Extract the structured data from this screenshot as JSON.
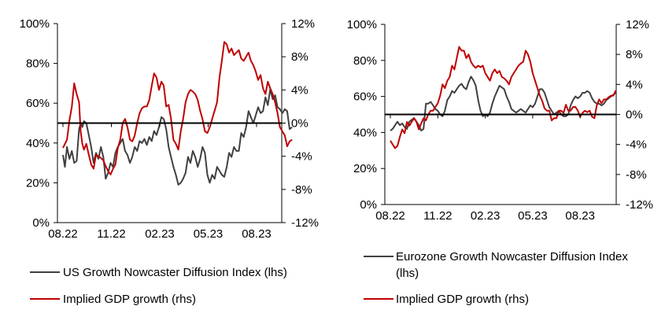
{
  "chart_data": [
    {
      "type": "line",
      "id": "us",
      "x_tick_labels": [
        "08.22",
        "11.22",
        "02.23",
        "05.23",
        "08.23"
      ],
      "x_tick_positions_month_index": [
        0,
        3,
        6,
        9,
        12
      ],
      "x_range_month_index": [
        0,
        14.3
      ],
      "ylim_left": [
        0,
        100
      ],
      "ylim_right": [
        -12,
        12
      ],
      "left_tick_labels": [
        "0%",
        "20%",
        "40%",
        "60%",
        "80%",
        "100%"
      ],
      "right_tick_labels": [
        "-12%",
        "-8%",
        "-4%",
        "0%",
        "4%",
        "8%",
        "12%"
      ],
      "reference_line": {
        "axis": "left",
        "value": 50
      },
      "series": [
        {
          "name": "US Growth Nowcaster Diffusion Index (lhs)",
          "axis": "left",
          "color": "#404040",
          "x": [
            0,
            0.12,
            0.25,
            0.4,
            0.55,
            0.7,
            0.85,
            1,
            1.1,
            1.2,
            1.3,
            1.45,
            1.6,
            1.75,
            1.9,
            2.05,
            2.2,
            2.35,
            2.5,
            2.65,
            2.8,
            2.95,
            3.1,
            3.25,
            3.4,
            3.55,
            3.7,
            3.85,
            4,
            4.15,
            4.3,
            4.45,
            4.6,
            4.75,
            4.9,
            5.05,
            5.2,
            5.35,
            5.5,
            5.65,
            5.8,
            5.95,
            6.1,
            6.25,
            6.4,
            6.55,
            6.7,
            6.85,
            7,
            7.15,
            7.3,
            7.45,
            7.6,
            7.75,
            7.9,
            8.05,
            8.2,
            8.35,
            8.5,
            8.65,
            8.8,
            8.95,
            9.1,
            9.25,
            9.4,
            9.55,
            9.7,
            9.85,
            10,
            10.15,
            10.3,
            10.45,
            10.6,
            10.75,
            10.9,
            11.05,
            11.2,
            11.35,
            11.5,
            11.65,
            11.8,
            11.95,
            12.1,
            12.25,
            12.4,
            12.55,
            12.7,
            12.85,
            13,
            13.15,
            13.3,
            13.45,
            13.6,
            13.75,
            13.9,
            14.05,
            14.2
          ],
          "values": [
            34,
            28,
            38,
            32,
            36,
            30,
            31,
            47,
            50,
            48,
            51,
            50,
            44,
            38,
            30,
            35,
            32,
            38,
            33,
            22,
            25,
            30,
            28,
            35,
            38,
            40,
            42,
            36,
            34,
            30,
            33,
            38,
            36,
            41,
            40,
            42,
            39,
            43,
            41,
            46,
            44,
            48,
            53,
            52,
            47,
            38,
            33,
            28,
            24,
            19,
            20,
            22,
            25,
            33,
            30,
            36,
            33,
            28,
            32,
            38,
            35,
            24,
            20,
            24,
            22,
            28,
            26,
            24,
            23,
            28,
            35,
            33,
            38,
            36,
            36,
            45,
            43,
            48,
            56,
            53,
            50,
            54,
            58,
            55,
            56,
            63,
            59,
            67,
            62,
            64,
            58,
            57,
            55,
            57,
            56,
            47,
            48
          ]
        },
        {
          "name": "Implied GDP growth (rhs)",
          "axis": "right",
          "color": "#c00000",
          "x": [
            0,
            0.12,
            0.25,
            0.4,
            0.55,
            0.7,
            0.85,
            1,
            1.1,
            1.2,
            1.3,
            1.45,
            1.6,
            1.75,
            1.9,
            2.05,
            2.2,
            2.35,
            2.5,
            2.65,
            2.8,
            2.95,
            3.1,
            3.25,
            3.4,
            3.55,
            3.7,
            3.85,
            4,
            4.15,
            4.3,
            4.45,
            4.6,
            4.75,
            4.9,
            5.05,
            5.2,
            5.35,
            5.5,
            5.65,
            5.8,
            5.95,
            6.1,
            6.25,
            6.4,
            6.55,
            6.7,
            6.85,
            7,
            7.15,
            7.3,
            7.45,
            7.6,
            7.75,
            7.9,
            8.05,
            8.2,
            8.35,
            8.5,
            8.65,
            8.8,
            8.95,
            9.1,
            9.25,
            9.4,
            9.55,
            9.7,
            9.85,
            10,
            10.15,
            10.3,
            10.45,
            10.6,
            10.75,
            10.9,
            11.05,
            11.2,
            11.35,
            11.5,
            11.65,
            11.8,
            11.95,
            12.1,
            12.25,
            12.4,
            12.55,
            12.7,
            12.85,
            13,
            13.15,
            13.3,
            13.45,
            13.6,
            13.75,
            13.9,
            14.05,
            14.2
          ],
          "values": [
            -3,
            -2.5,
            -2,
            0.3,
            2,
            4.8,
            3.5,
            2.5,
            -1,
            -2.5,
            -3.2,
            -2.5,
            -3.8,
            -5,
            -5.5,
            -3.8,
            -4,
            -4.2,
            -4.5,
            -5.2,
            -5.8,
            -6.2,
            -5.5,
            -5,
            -3,
            -2,
            0,
            0.5,
            -0.5,
            -2,
            -2.2,
            -1.5,
            0,
            1.2,
            1.8,
            2,
            2,
            2.8,
            4.5,
            6,
            5.5,
            4,
            5,
            4.5,
            2,
            2.2,
            0.5,
            -2,
            -2.5,
            -3.2,
            -1,
            0.5,
            2.5,
            3.5,
            4,
            3.8,
            3.5,
            2.8,
            1.5,
            0.5,
            -1,
            -1.2,
            -0.5,
            0.5,
            1.5,
            2.5,
            5.5,
            7.5,
            9.8,
            9.5,
            8.5,
            9,
            8.2,
            8.5,
            8.8,
            7.8,
            7.5,
            8,
            8.5,
            7.5,
            7,
            6.2,
            5.2,
            5.8,
            4.2,
            3.5,
            5,
            4.2,
            3.5,
            2.5,
            1.2,
            -0.5,
            -1,
            -1.5,
            -2.8,
            -2.2,
            -2
          ]
        }
      ],
      "legend_position": "bottom"
    },
    {
      "type": "line",
      "id": "eurozone",
      "x_tick_labels": [
        "08.22",
        "11.22",
        "02.23",
        "05.23",
        "08.23"
      ],
      "x_tick_positions_month_index": [
        0,
        3,
        6,
        9,
        12
      ],
      "x_range_month_index": [
        0,
        14.3
      ],
      "ylim_left": [
        0,
        100
      ],
      "ylim_right": [
        -12,
        12
      ],
      "left_tick_labels": [
        "0%",
        "20%",
        "40%",
        "60%",
        "80%",
        "100%"
      ],
      "right_tick_labels": [
        "-12%",
        "-8%",
        "-4%",
        "0%",
        "4%",
        "8%",
        "12%"
      ],
      "reference_line": {
        "axis": "left",
        "value": 50
      },
      "series": [
        {
          "name": "Eurozone Growth Nowcaster Diffusion Index (lhs)",
          "axis": "left",
          "color": "#404040",
          "x": [
            0,
            0.15,
            0.3,
            0.45,
            0.6,
            0.75,
            0.9,
            1.05,
            1.2,
            1.35,
            1.5,
            1.65,
            1.8,
            1.95,
            2.1,
            2.25,
            2.4,
            2.55,
            2.7,
            2.85,
            3,
            3.15,
            3.3,
            3.45,
            3.6,
            3.75,
            3.9,
            4.05,
            4.2,
            4.35,
            4.5,
            4.65,
            4.8,
            4.95,
            5.1,
            5.25,
            5.4,
            5.55,
            5.7,
            5.85,
            6,
            6.15,
            6.3,
            6.45,
            6.6,
            6.75,
            6.9,
            7.05,
            7.2,
            7.35,
            7.5,
            7.65,
            7.8,
            7.95,
            8.1,
            8.25,
            8.4,
            8.55,
            8.7,
            8.85,
            9,
            9.15,
            9.3,
            9.45,
            9.6,
            9.75,
            9.9,
            10.05,
            10.2,
            10.35,
            10.5,
            10.65,
            10.8,
            10.95,
            11.1,
            11.25,
            11.4,
            11.55,
            11.7,
            11.85,
            12,
            12.15,
            12.3,
            12.45,
            12.6,
            12.75,
            12.9,
            13.05,
            13.2,
            13.35,
            13.5,
            13.65,
            13.8,
            13.95,
            14.1,
            14.25
          ],
          "values": [
            41,
            42,
            44,
            46,
            44,
            45,
            43,
            42,
            46,
            47,
            48,
            46,
            44,
            41,
            42,
            56,
            56,
            57,
            55,
            53,
            52,
            50,
            49,
            52,
            58,
            60,
            63,
            62,
            64,
            66,
            67,
            65,
            64,
            68,
            71,
            69,
            66,
            58,
            52,
            49,
            50,
            49,
            51,
            56,
            60,
            63,
            66,
            65,
            64,
            60,
            57,
            53,
            52,
            51,
            52,
            53,
            52,
            51,
            53,
            55,
            54,
            56,
            60,
            64,
            64,
            62,
            58,
            54,
            52,
            50,
            51,
            52,
            50,
            49,
            49,
            50,
            55,
            58,
            60,
            59,
            60,
            62,
            62,
            63,
            62,
            59,
            57,
            56,
            56,
            55,
            56,
            58,
            59,
            60,
            61,
            62
          ]
        },
        {
          "name": "Implied GDP growth (rhs)",
          "axis": "right",
          "color": "#c00000",
          "x": [
            0,
            0.15,
            0.3,
            0.45,
            0.6,
            0.75,
            0.9,
            1.05,
            1.2,
            1.35,
            1.5,
            1.65,
            1.8,
            1.95,
            2.1,
            2.25,
            2.4,
            2.55,
            2.7,
            2.85,
            3,
            3.15,
            3.3,
            3.45,
            3.6,
            3.75,
            3.9,
            4.05,
            4.2,
            4.35,
            4.5,
            4.65,
            4.8,
            4.95,
            5.1,
            5.25,
            5.4,
            5.55,
            5.7,
            5.85,
            6,
            6.15,
            6.3,
            6.45,
            6.6,
            6.75,
            6.9,
            7.05,
            7.2,
            7.35,
            7.5,
            7.65,
            7.8,
            7.95,
            8.1,
            8.25,
            8.4,
            8.55,
            8.7,
            8.85,
            9,
            9.15,
            9.3,
            9.45,
            9.6,
            9.75,
            9.9,
            10.05,
            10.2,
            10.35,
            10.5,
            10.65,
            10.8,
            10.95,
            11.1,
            11.25,
            11.4,
            11.55,
            11.7,
            11.85,
            12,
            12.15,
            12.3,
            12.45,
            12.6,
            12.75,
            12.9,
            13.05,
            13.2,
            13.35,
            13.5,
            13.65,
            13.8,
            13.95,
            14.1,
            14.25
          ],
          "values": [
            -3.5,
            -4,
            -4.5,
            -4.2,
            -3,
            -2,
            -2.5,
            -1,
            -1.5,
            -1,
            -0.5,
            -1,
            -2,
            -1.2,
            -0.5,
            -0.8,
            0,
            0.5,
            0.5,
            1,
            1.5,
            2.5,
            4,
            3.5,
            4.5,
            5,
            6.5,
            6,
            7.5,
            9,
            8.5,
            8.5,
            7.5,
            8,
            7,
            6.5,
            6.2,
            6.5,
            6.3,
            6.5,
            5.5,
            5,
            4.5,
            5.5,
            6,
            5.5,
            5.8,
            5,
            4.8,
            4.5,
            4,
            5,
            5.5,
            6,
            6.5,
            6.8,
            7,
            8.5,
            8,
            7,
            5.5,
            4.5,
            3.5,
            2.5,
            1.8,
            0.8,
            0.5,
            0.5,
            -0.8,
            -0.5,
            -0.5,
            0.5,
            0.5,
            0.2,
            1.3,
            0.5,
            0.5,
            1,
            1,
            0.5,
            -0.3,
            0.2,
            0.5,
            0.3,
            0.5,
            -0.3,
            -0.5,
            1.2,
            2,
            1.5,
            2,
            2,
            2.3,
            2.5,
            2.5,
            3.2
          ]
        }
      ],
      "legend_position": "bottom"
    }
  ],
  "legends": {
    "us": [
      {
        "label": "US Growth Nowcaster Diffusion Index (lhs)",
        "color": "#404040"
      },
      {
        "label": "Implied GDP growth (rhs)",
        "color": "#c00000"
      }
    ],
    "eurozone": [
      {
        "label_line1": "Eurozone Growth Nowcaster Diffusion Index",
        "label_line2": "(lhs)",
        "color": "#404040"
      },
      {
        "label": "Implied GDP growth (rhs)",
        "color": "#c00000"
      }
    ]
  }
}
